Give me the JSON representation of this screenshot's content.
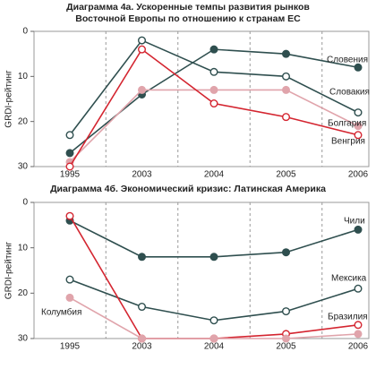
{
  "chart_data": [
    {
      "type": "line",
      "title": [
        "Диаграмма 4а. Ускоренные темпы развития рынков",
        "Восточной Европы по отношению к странам ЕС"
      ],
      "y_label": "GRDI-рейтинг",
      "categories": [
        "1995",
        "2003",
        "2004",
        "2005",
        "2006"
      ],
      "ylim": [
        0,
        30
      ],
      "yticks": [
        0,
        10,
        20,
        30
      ],
      "y_inverted": true,
      "series": [
        {
          "name": "Словения",
          "color": "#2f4f4f",
          "marker": "filled",
          "values": [
            27,
            14,
            4,
            5,
            8
          ]
        },
        {
          "name": "Словакия",
          "color": "#2f4f4f",
          "marker": "open",
          "values": [
            23,
            2,
            9,
            10,
            18
          ]
        },
        {
          "name": "Болгария",
          "color": "#e0a4ab",
          "marker": "filled",
          "values": [
            29,
            13,
            13,
            13,
            21
          ]
        },
        {
          "name": "Венгрия",
          "color": "#d42530",
          "marker": "open",
          "values": [
            30,
            4,
            16,
            19,
            23
          ]
        }
      ]
    },
    {
      "type": "line",
      "title": [
        "Диаграмма 4б. Экономический кризис: Латинская Америка"
      ],
      "y_label": "GRDI-рейтинг",
      "categories": [
        "1995",
        "2003",
        "2004",
        "2005",
        "2006"
      ],
      "ylim": [
        0,
        30
      ],
      "yticks": [
        0,
        10,
        20,
        30
      ],
      "y_inverted": true,
      "series": [
        {
          "name": "Чили",
          "color": "#2f4f4f",
          "marker": "filled",
          "values": [
            4,
            12,
            12,
            11,
            6
          ]
        },
        {
          "name": "Мексика",
          "color": "#2f4f4f",
          "marker": "open",
          "values": [
            17,
            23,
            26,
            24,
            19
          ]
        },
        {
          "name": "Бразилия",
          "color": "#d42530",
          "marker": "open",
          "values": [
            3,
            30,
            30,
            29,
            27
          ]
        },
        {
          "name": "Колумбия",
          "color": "#e0a4ab",
          "marker": "filled",
          "values": [
            21,
            30,
            30,
            30,
            29
          ]
        }
      ]
    }
  ]
}
